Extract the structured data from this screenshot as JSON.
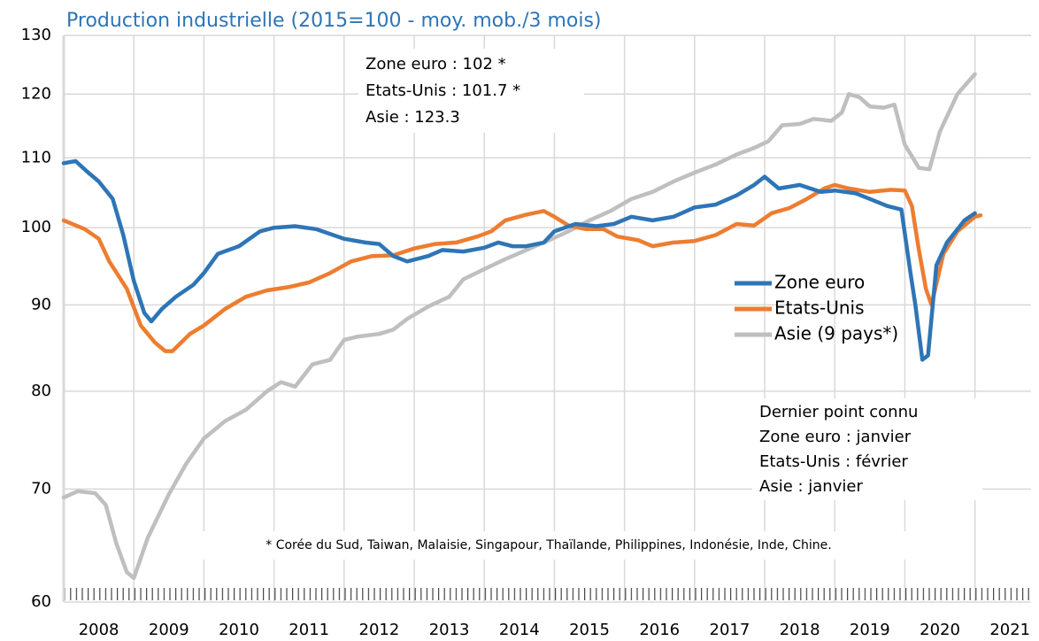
{
  "chart_data": {
    "type": "line",
    "title": "Production industrielle (2015=100 - moy. mob./3 mois)",
    "log_scale": true,
    "grid": true,
    "xlim": [
      2008,
      2021.8
    ],
    "xticks": [
      2008,
      2009,
      2010,
      2011,
      2012,
      2013,
      2014,
      2015,
      2016,
      2017,
      2018,
      2019,
      2020,
      2021
    ],
    "ylim": [
      60,
      130
    ],
    "yticks": [
      60,
      70,
      80,
      90,
      100,
      110,
      120,
      130
    ],
    "annotations": {
      "last_values": [
        "Zone euro : 102 *",
        "Etats-Unis : 101.7 *",
        "Asie : 123.3"
      ],
      "last_point": [
        "Dernier point connu",
        "Zone euro : janvier",
        "Etats-Unis : février",
        "Asie : janvier"
      ],
      "footnote": "* Corée du Sud, Taiwan, Malaisie, Singapour, Thaïlande, Philippines, Indonésie, Inde, Chine."
    },
    "series": [
      {
        "name": "Zone euro",
        "color": "#2e75b6",
        "x": [
          2008,
          2008.17,
          2008.33,
          2008.5,
          2008.7,
          2008.85,
          2009,
          2009.15,
          2009.25,
          2009.4,
          2009.6,
          2009.85,
          2010,
          2010.2,
          2010.5,
          2010.8,
          2011,
          2011.3,
          2011.6,
          2012,
          2012.3,
          2012.5,
          2012.7,
          2012.9,
          2013.2,
          2013.4,
          2013.7,
          2014,
          2014.2,
          2014.4,
          2014.6,
          2014.85,
          2015,
          2015.3,
          2015.6,
          2015.85,
          2016.1,
          2016.4,
          2016.7,
          2017,
          2017.3,
          2017.6,
          2017.85,
          2018,
          2018.2,
          2018.5,
          2018.8,
          2019,
          2019.3,
          2019.5,
          2019.75,
          2019.95,
          2020.08,
          2020.15,
          2020.25,
          2020.33,
          2020.45,
          2020.6,
          2020.85,
          2021
        ],
        "values": [
          109.2,
          109.5,
          108,
          106.5,
          104,
          99,
          93,
          89,
          88,
          89.5,
          91,
          92.5,
          94,
          96.5,
          97.5,
          99.5,
          100,
          100.2,
          99.8,
          98.5,
          98,
          97.8,
          96.2,
          95.5,
          96.2,
          97,
          96.8,
          97.3,
          98,
          97.5,
          97.5,
          98,
          99.5,
          100.5,
          100.2,
          100.5,
          101.5,
          101,
          101.5,
          102.8,
          103.2,
          104.5,
          106,
          107.2,
          105.5,
          106,
          105,
          105.2,
          104.8,
          104,
          103,
          102.5,
          94,
          90,
          83.5,
          84,
          95,
          98,
          101,
          102
        ]
      },
      {
        "name": "Etats-Unis",
        "color": "#ed7d31",
        "x": [
          2008,
          2008.3,
          2008.5,
          2008.65,
          2008.9,
          2009.1,
          2009.3,
          2009.45,
          2009.55,
          2009.8,
          2010,
          2010.3,
          2010.6,
          2010.9,
          2011.2,
          2011.5,
          2011.8,
          2012.1,
          2012.4,
          2012.7,
          2013,
          2013.3,
          2013.6,
          2013.9,
          2014.1,
          2014.3,
          2014.6,
          2014.85,
          2015,
          2015.2,
          2015.45,
          2015.7,
          2015.9,
          2016.2,
          2016.4,
          2016.7,
          2017,
          2017.3,
          2017.6,
          2017.85,
          2018.1,
          2018.35,
          2018.6,
          2018.85,
          2019,
          2019.2,
          2019.5,
          2019.8,
          2020,
          2020.1,
          2020.2,
          2020.3,
          2020.38,
          2020.55,
          2020.75,
          2021,
          2021.08
        ],
        "values": [
          101,
          99.8,
          98.5,
          95.5,
          92,
          87.5,
          85.5,
          84.5,
          84.5,
          86.5,
          87.5,
          89.5,
          91,
          91.8,
          92.2,
          92.8,
          94,
          95.5,
          96.2,
          96.3,
          97.2,
          97.8,
          98,
          98.8,
          99.5,
          101,
          101.8,
          102.3,
          101.5,
          100.3,
          99.8,
          99.8,
          98.8,
          98.3,
          97.5,
          98,
          98.2,
          99,
          100.5,
          100.3,
          102,
          102.7,
          104,
          105.5,
          106,
          105.5,
          105,
          105.3,
          105.2,
          103,
          97,
          92,
          90,
          96.5,
          99.5,
          101.5,
          101.7
        ]
      },
      {
        "name": "Asie (9 pays*)",
        "color": "#bfbfbf",
        "x": [
          2008,
          2008.2,
          2008.45,
          2008.6,
          2008.75,
          2008.9,
          2009,
          2009.2,
          2009.5,
          2009.75,
          2010,
          2010.3,
          2010.6,
          2010.9,
          2011.1,
          2011.3,
          2011.55,
          2011.8,
          2012,
          2012.2,
          2012.5,
          2012.7,
          2012.9,
          2013.2,
          2013.5,
          2013.7,
          2014,
          2014.3,
          2014.6,
          2014.9,
          2015.2,
          2015.5,
          2015.8,
          2016.1,
          2016.4,
          2016.7,
          2017,
          2017.3,
          2017.6,
          2017.85,
          2018.05,
          2018.25,
          2018.5,
          2018.7,
          2018.95,
          2019.1,
          2019.2,
          2019.35,
          2019.5,
          2019.7,
          2019.85,
          2020,
          2020.2,
          2020.35,
          2020.5,
          2020.75,
          2020.9,
          2021
        ],
        "values": [
          69.2,
          69.8,
          69.6,
          68.5,
          65,
          62.5,
          62,
          65.5,
          69.5,
          72.5,
          75,
          76.8,
          78,
          80,
          81,
          80.5,
          83,
          83.5,
          85.8,
          86.2,
          86.5,
          87,
          88.3,
          89.8,
          91,
          93.2,
          94.5,
          95.8,
          97,
          98.2,
          99.5,
          101,
          102.3,
          104,
          105,
          106.5,
          107.8,
          109,
          110.5,
          111.5,
          112.5,
          115,
          115.2,
          116,
          115.7,
          117,
          120,
          119.5,
          118,
          117.8,
          118.3,
          112,
          108.5,
          108.3,
          114,
          120,
          122,
          123.3
        ]
      }
    ]
  }
}
